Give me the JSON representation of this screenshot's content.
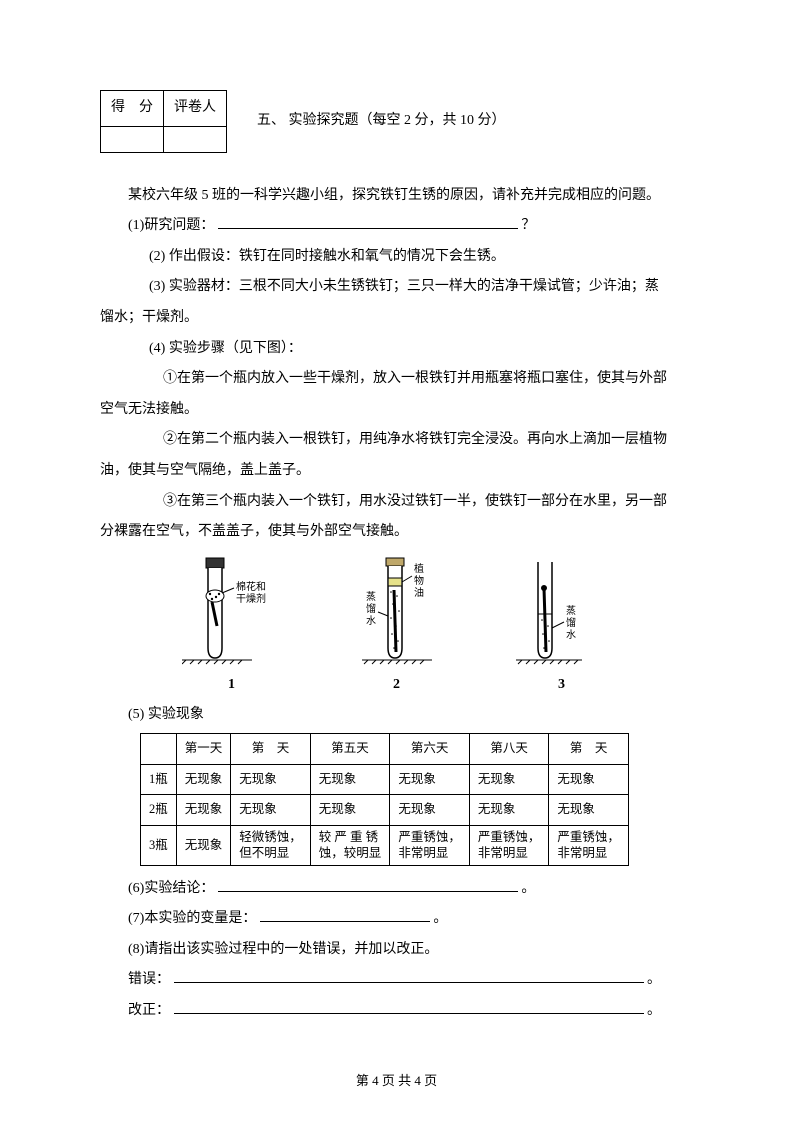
{
  "header": {
    "score_label": "得　分",
    "grader_label": "评卷人",
    "section_title": "五、 实验探究题（每空 2 分，共 10 分）"
  },
  "intro": "某校六年级 5 班的一科学兴趣小组，探究铁钉生锈的原因，请补充并完成相应的问题。",
  "q1_label": "(1)研究问题：",
  "q1_suffix": "？",
  "q2": "(2) 作出假设：铁钉在同时接触水和氧气的情况下会生锈。",
  "q3_l1": "(3) 实验器材：三根不同大小未生锈铁钉；三只一样大的洁净干燥试管；少许油；蒸",
  "q3_l2": "馏水；干燥剂。",
  "q4": "(4) 实验步骤（见下图）：",
  "step1_l1": "①在第一个瓶内放入一些干燥剂，放入一根铁钉并用瓶塞将瓶口塞住，使其与外部",
  "step1_l2": "空气无法接触。",
  "step2_l1": "②在第二个瓶内装入一根铁钉，用纯净水将铁钉完全浸没。再向水上滴加一层植物",
  "step2_l2": "油，使其与空气隔绝，盖上盖子。",
  "step3_l1": "③在第三个瓶内装入一个铁钉，用水没过铁钉一半，使铁钉一部分在水里，另一部",
  "step3_l2": "分裸露在空气，不盖盖子，使其与外部空气接触。",
  "diagram_labels": {
    "cotton": "棉花和",
    "desiccant": "干燥剂",
    "plant_oil_1": "植",
    "plant_oil_2": "物",
    "plant_oil_3": "油",
    "distilled_1": "蒸",
    "distilled_2": "馏",
    "distilled_3": "水",
    "num1": "1",
    "num2": "2",
    "num3": "3"
  },
  "q5_label": "(5) 实验现象",
  "table": {
    "headers": [
      "",
      "第一天",
      "第　天",
      "第五天",
      "第六天",
      "第八天",
      "第　天"
    ],
    "rows": [
      {
        "label": "1瓶",
        "cells": [
          "无现象",
          "无现象",
          "无现象",
          "无现象",
          "无现象",
          "无现象"
        ]
      },
      {
        "label": "2瓶",
        "cells": [
          "无现象",
          "无现象",
          "无现象",
          "无现象",
          "无现象",
          "无现象"
        ]
      },
      {
        "label": "3瓶",
        "cells": [
          "无现象",
          [
            "轻微锈蚀，",
            "但不明显"
          ],
          [
            "较 严 重 锈",
            "蚀，较明显"
          ],
          [
            "严重锈蚀，",
            "非常明显"
          ],
          [
            "严重锈蚀，",
            "非常明显"
          ],
          [
            "严重锈蚀，",
            "非常明显"
          ]
        ]
      }
    ]
  },
  "q6_label": "(6)实验结论：",
  "q7_label": "(7)本实验的变量是：",
  "q8": "(8)请指出该实验过程中的一处错误，并加以改正。",
  "err_label": "错误：",
  "fix_label": "改正：",
  "period": "。",
  "footer": "第 4 页  共 4 页"
}
